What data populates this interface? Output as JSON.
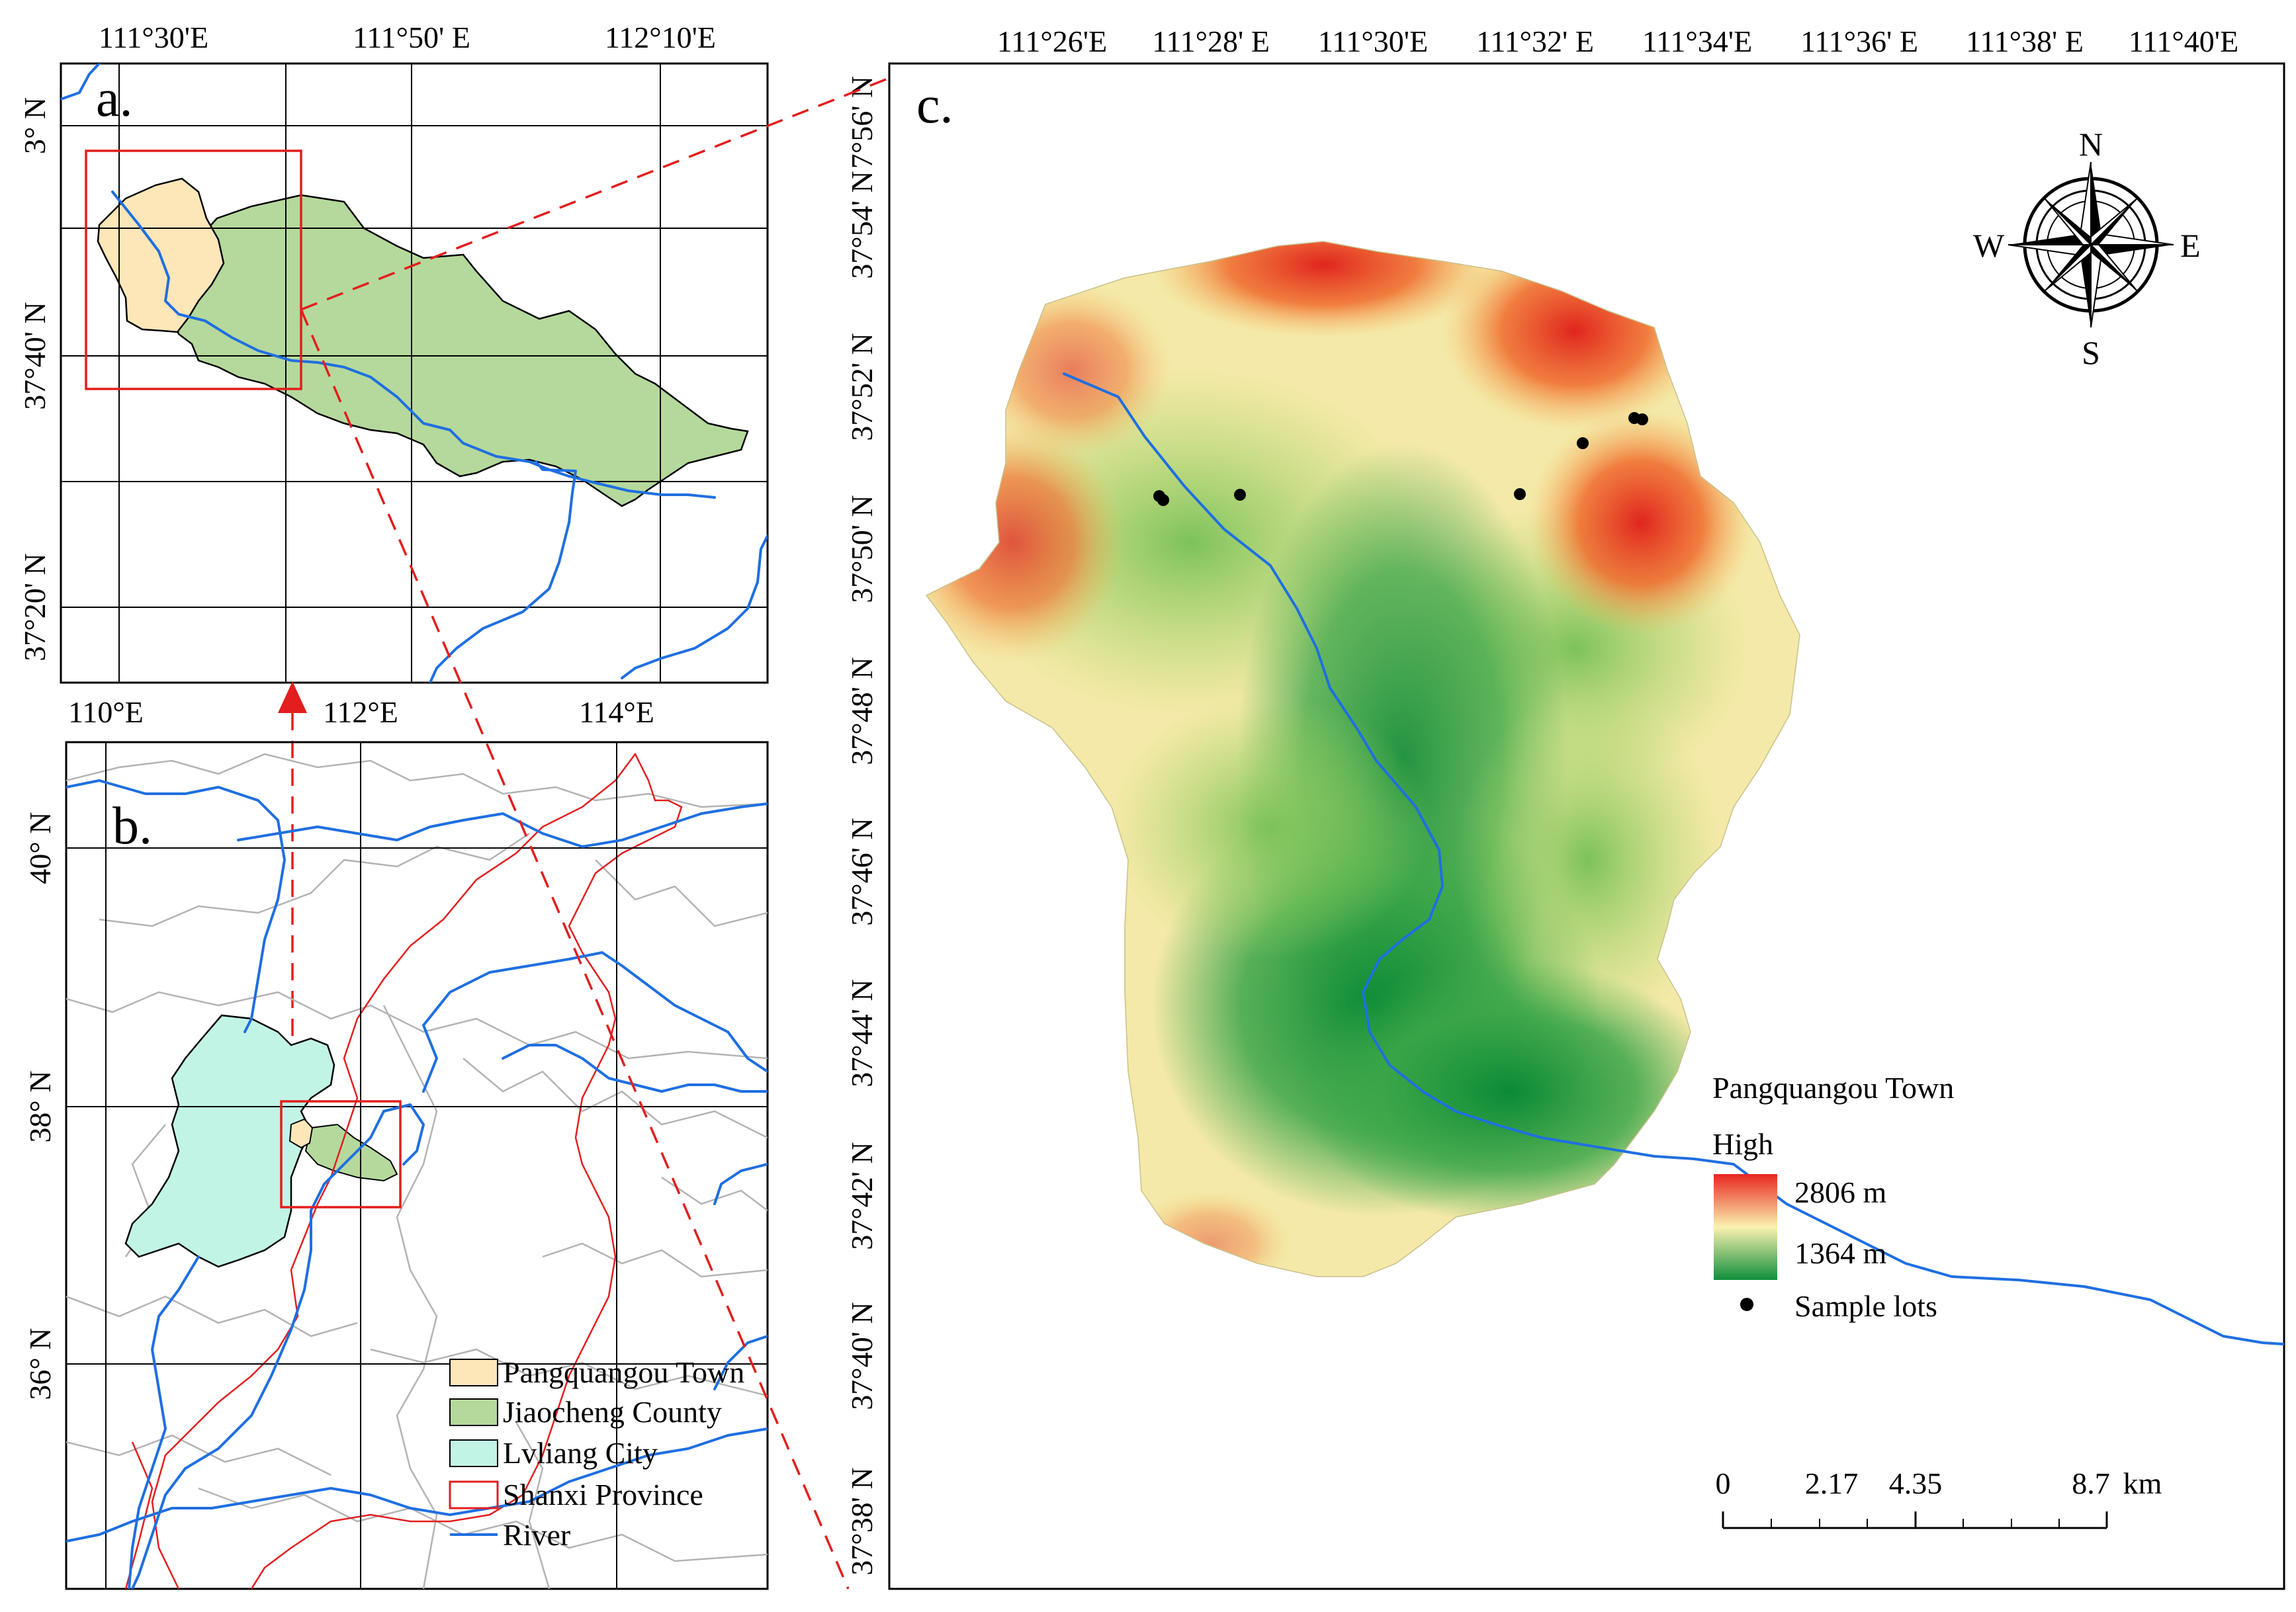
{
  "panels": {
    "a": {
      "letter": "a.",
      "top_ticks": [
        "111°30'E",
        "111°50' E",
        "112°10'E"
      ],
      "left_ticks": [
        "3° N",
        "37°40' N",
        "37°20' N"
      ]
    },
    "b": {
      "letter": "b.",
      "top_ticks": [
        "110°E",
        "112°E",
        "114°E"
      ],
      "left_ticks": [
        "40° N",
        "38° N",
        "36° N"
      ],
      "legend": [
        {
          "label": "Pangquangou Town",
          "kind": "fill",
          "color": "#fde6b8"
        },
        {
          "label": "Jiaocheng County",
          "kind": "fill",
          "color": "#b5d99c"
        },
        {
          "label": "Lvliang City",
          "kind": "fill",
          "color": "#c2f4e6"
        },
        {
          "label": "Shanxi Province",
          "kind": "outline",
          "color": "#e21e1e"
        },
        {
          "label": "River",
          "kind": "line",
          "color": "#1f6fe0"
        }
      ]
    },
    "c": {
      "letter": "c.",
      "top_ticks": [
        "111°26'E",
        "111°28' E",
        "111°30'E",
        "111°32' E",
        "111°34'E",
        "111°36' E",
        "111°38' E",
        "111°40'E"
      ],
      "left_ticks": [
        "7°56' N",
        "37°54' N",
        "37°52' N",
        "37°50' N",
        "37°48' N",
        "37°46' N",
        "37°44' N",
        "37°42' N",
        "37°40' N",
        "37°38' N"
      ],
      "legend": {
        "title": "Pangquangou Town",
        "high_label": "High",
        "max_label": "2806 m",
        "min_label": "1364 m",
        "points_label": "Sample lots"
      },
      "compass": {
        "n": "N",
        "s": "S",
        "e": "E",
        "w": "W"
      },
      "scale_bar": {
        "ticks": [
          "0",
          "2.17",
          "4.35",
          "8.7"
        ],
        "unit": "km"
      }
    }
  },
  "colors": {
    "town": "#fde6b8",
    "county": "#b5d99c",
    "city": "#c2f4e6",
    "river": "#1f6fe0",
    "province": "#e21e1e",
    "elev_high": "#e8261f",
    "elev_mid": "#fbf1b0",
    "elev_low": "#0e8f3a"
  }
}
